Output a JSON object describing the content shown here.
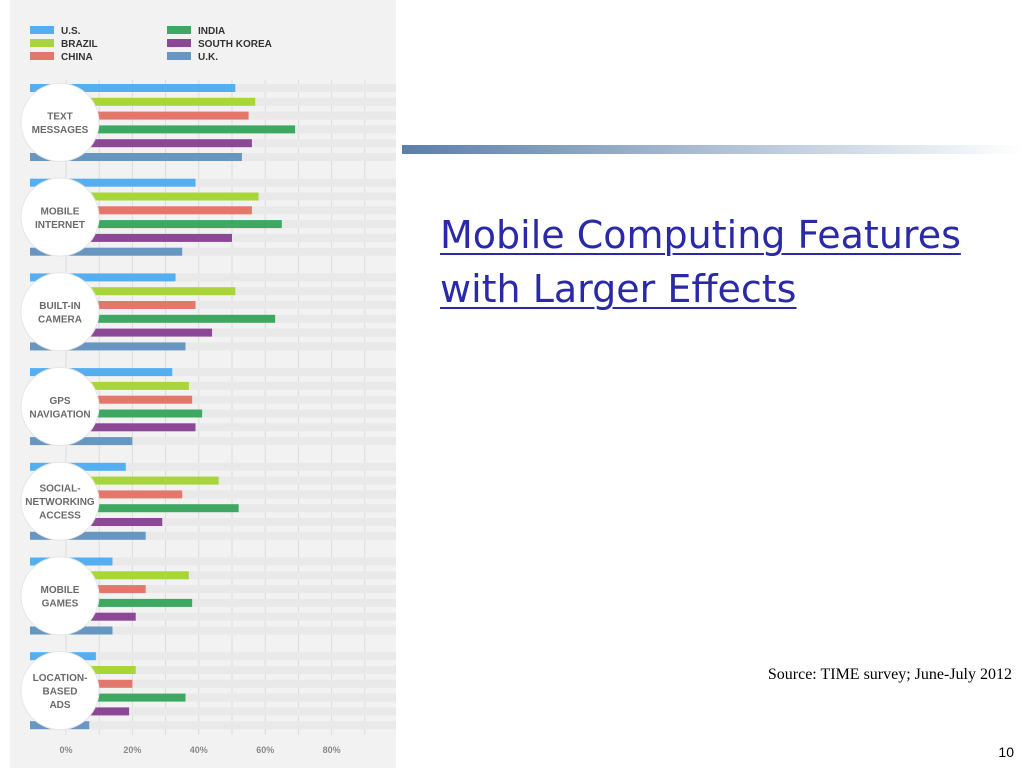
{
  "slide": {
    "title_lines": [
      "Mobile Computing Features",
      "with Larger Effects"
    ],
    "source": "Source: TIME survey; June-July 2012",
    "page_number": "10",
    "title_color": "#2a2aa8",
    "accent_colors": [
      "#5b7fa8",
      "#ffffff"
    ]
  },
  "chart_data": {
    "type": "bar",
    "orientation": "horizontal",
    "categories": [
      "TEXT MESSAGES",
      "MOBILE INTERNET",
      "BUILT-IN CAMERA",
      "GPS NAVIGATION",
      "SOCIAL-NETWORKING ACCESS",
      "MOBILE GAMES",
      "LOCATION-BASED ADS"
    ],
    "category_label_lines": [
      [
        "TEXT",
        "MESSAGES"
      ],
      [
        "MOBILE",
        "INTERNET"
      ],
      [
        "BUILT-IN",
        "CAMERA"
      ],
      [
        "GPS",
        "NAVIGATION"
      ],
      [
        "SOCIAL-",
        "NETWORKING",
        "ACCESS"
      ],
      [
        "MOBILE",
        "GAMES"
      ],
      [
        "LOCATION-",
        "BASED",
        "ADS"
      ]
    ],
    "series": [
      {
        "name": "U.S.",
        "color": "#55aef0",
        "values": [
          51,
          39,
          33,
          32,
          18,
          14,
          9
        ]
      },
      {
        "name": "BRAZIL",
        "color": "#a8d638",
        "values": [
          57,
          58,
          51,
          37,
          46,
          37,
          21
        ]
      },
      {
        "name": "CHINA",
        "color": "#e4776b",
        "values": [
          55,
          56,
          39,
          38,
          35,
          24,
          20
        ]
      },
      {
        "name": "INDIA",
        "color": "#3ea862",
        "values": [
          69,
          65,
          63,
          41,
          52,
          38,
          36
        ]
      },
      {
        "name": "SOUTH KOREA",
        "color": "#8c4896",
        "values": [
          56,
          50,
          44,
          39,
          29,
          21,
          19
        ]
      },
      {
        "name": "U.K.",
        "color": "#6797c0",
        "values": [
          53,
          35,
          36,
          20,
          24,
          14,
          7
        ]
      }
    ],
    "x_ticks": [
      "0%",
      "20%",
      "40%",
      "60%",
      "80%"
    ],
    "xlim": [
      0,
      100
    ],
    "unit": "%",
    "legend_position": "top",
    "grid": true,
    "background_color": "#f2f2f2"
  }
}
